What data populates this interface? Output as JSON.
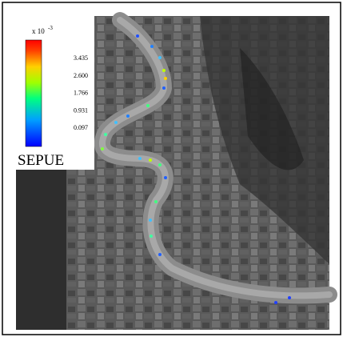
{
  "legend": {
    "scale_base": "x 10",
    "scale_exponent": "-3",
    "ticks": [
      "3.435",
      "2.600",
      "1.766",
      "0.931",
      "0.097"
    ],
    "title": "SEPUE"
  }
}
